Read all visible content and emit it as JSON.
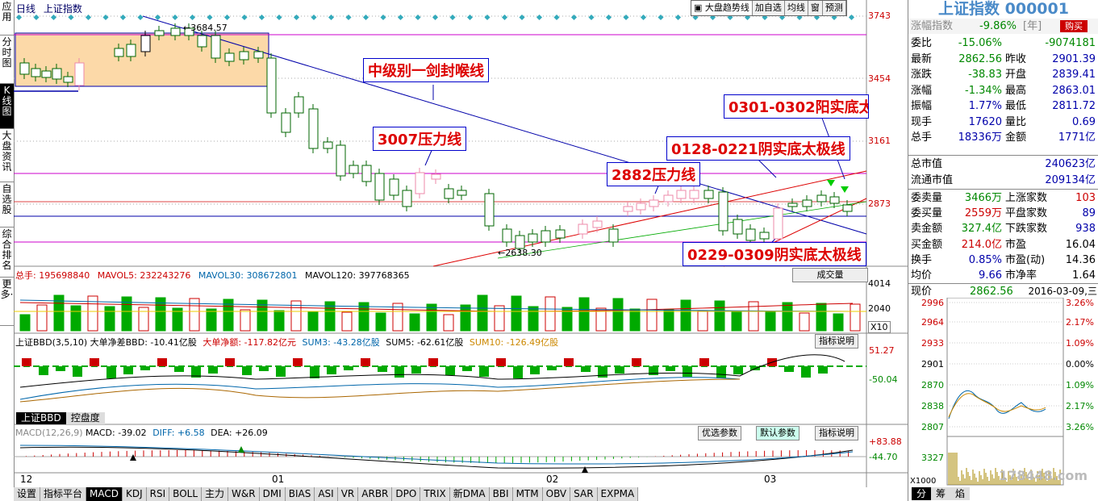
{
  "left_tabs": [
    "应用",
    "分时图",
    "K线图",
    "大盘资讯",
    "自选股",
    "综合排名",
    "更多·"
  ],
  "header": {
    "period": "日线",
    "name": "上证指数"
  },
  "toolbar": [
    "大盘趋势线",
    "加自选",
    "均线",
    "窗",
    "预测"
  ],
  "price_axis": [
    "3743",
    "3454",
    "3161",
    "2873"
  ],
  "vol_axis": [
    "4014",
    "2040",
    "X10"
  ],
  "bbd_axis": [
    "51.27",
    "-50.04"
  ],
  "macd_axis": [
    "+83.88",
    "-44.70"
  ],
  "chart_labels": {
    "high": "3684.57",
    "low": "2638.30"
  },
  "annotations": {
    "a1": "中级别一剑封喉线",
    "a2": "3007压力线",
    "a3": "0301-0302阳实底太",
    "a4": "0128-0221阴实底太极线",
    "a5": "2882压力线",
    "a6": "0229-0309阴实底太极线"
  },
  "vol_info": {
    "total": "总手: 195698840",
    "ma5": "MAVOL5: 232243276",
    "ma30": "MAVOL30: 308672801",
    "ma120": "MAVOL120: 397768365",
    "button": "成交量"
  },
  "bbd_info": {
    "name": "上证BBD(3,5,10)",
    "a": "大单净差BBD: -10.41亿股",
    "b": "大单净额: -117.82亿元",
    "c": "SUM3: -43.28亿股",
    "d": "SUM5: -62.61亿股",
    "e": "SUM10: -126.49亿股",
    "button": "指标说明"
  },
  "bbd_tabs": [
    "上证BBD",
    "控盘度"
  ],
  "macd_info": {
    "name": "MACD(12,26,9)",
    "a": "MACD: -39.02",
    "b": "DIFF: +6.58",
    "c": "DEA: +26.09",
    "btn1": "优选参数",
    "btn2": "默认参数",
    "btn3": "指标说明"
  },
  "date_axis": [
    "12",
    "01",
    "02",
    "03"
  ],
  "bottom_tabs": [
    "设置",
    "指标平台",
    "MACD",
    "KDJ",
    "RSI",
    "BOLL",
    "主力",
    "W&R",
    "DMI",
    "BIAS",
    "ASI",
    "VR",
    "ARBR",
    "DPO",
    "TRIX",
    "新DMA",
    "BBI",
    "MTM",
    "OBV",
    "SAR",
    "EXPMA"
  ],
  "panel": {
    "title": "上证指数 000001",
    "sub_left": "涨幅指数",
    "sub_mid": "-9.86%",
    "sub_unit": "[年]",
    "buy": "购买",
    "rows1": [
      [
        "委比",
        "-15.06%",
        "",
        "-9074181"
      ],
      [
        "最新",
        "2862.56",
        "昨收",
        "2901.39"
      ],
      [
        "涨跌",
        "-38.83",
        "开盘",
        "2839.41"
      ],
      [
        "涨幅",
        "-1.34%",
        "最高",
        "2863.01"
      ],
      [
        "振幅",
        "1.77%",
        "最低",
        "2811.72"
      ],
      [
        "现手",
        "17620",
        "量比",
        "0.69"
      ],
      [
        "总手",
        "18336万",
        "金额",
        "1771亿"
      ]
    ],
    "rows2": [
      [
        "总市值",
        "240623亿"
      ],
      [
        "流通市值",
        "209134亿"
      ]
    ],
    "rows3": [
      [
        "委卖量",
        "3466万",
        "上涨家数",
        "103"
      ],
      [
        "委买量",
        "2559万",
        "平盘家数",
        "89"
      ],
      [
        "卖金额",
        "327.4亿",
        "下跌家数",
        "938"
      ],
      [
        "买金额",
        "214.0亿",
        "市盈",
        "16.04"
      ],
      [
        "换手",
        "0.85%",
        "市盈(动)",
        "14.36"
      ],
      [
        "均价",
        "9.66",
        "市净率",
        "1.64"
      ]
    ],
    "now": {
      "label": "现价",
      "price": "2862.56",
      "date": "2016-03-09,三"
    },
    "mini_left": [
      "2996",
      "2964",
      "2933",
      "2901",
      "2870",
      "2838",
      "2807",
      "3327",
      "X1000"
    ],
    "mini_right": [
      "3.26%",
      "2.17%",
      "1.09%",
      "0.00%",
      "1.09%",
      "2.17%",
      "3.26%"
    ],
    "bottom_tabs": [
      "分",
      "筹",
      "焰"
    ],
    "watermark": "178448.com"
  }
}
